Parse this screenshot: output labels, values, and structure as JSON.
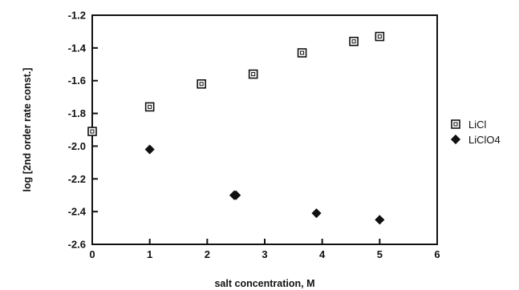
{
  "chart_data": {
    "type": "scatter",
    "xlabel": "salt concentration, M",
    "ylabel": "log [2nd order rate const.]",
    "xlim": [
      0,
      6
    ],
    "ylim": [
      -2.6,
      -1.2
    ],
    "x_ticks": [
      "0",
      "1",
      "2",
      "3",
      "4",
      "5",
      "6"
    ],
    "y_ticks": [
      "-1.2",
      "-1.4",
      "-1.6",
      "-1.8",
      "-2.0",
      "-2.2",
      "-2.4",
      "-2.6"
    ],
    "grid": false,
    "legend_position": "right",
    "series": [
      {
        "name": "LiCl",
        "marker": "open-square",
        "color": "#111111",
        "x": [
          0,
          1.0,
          1.9,
          2.8,
          3.65,
          4.55,
          5.0
        ],
        "y": [
          -1.91,
          -1.76,
          -1.62,
          -1.56,
          -1.43,
          -1.36,
          -1.33
        ]
      },
      {
        "name": "LiClO4",
        "marker": "filled-diamond",
        "color": "#111111",
        "x": [
          0,
          1.0,
          2.5,
          3.9,
          5.0
        ],
        "y": [
          -1.91,
          -2.02,
          -2.3,
          -2.41,
          -2.45
        ]
      }
    ]
  }
}
